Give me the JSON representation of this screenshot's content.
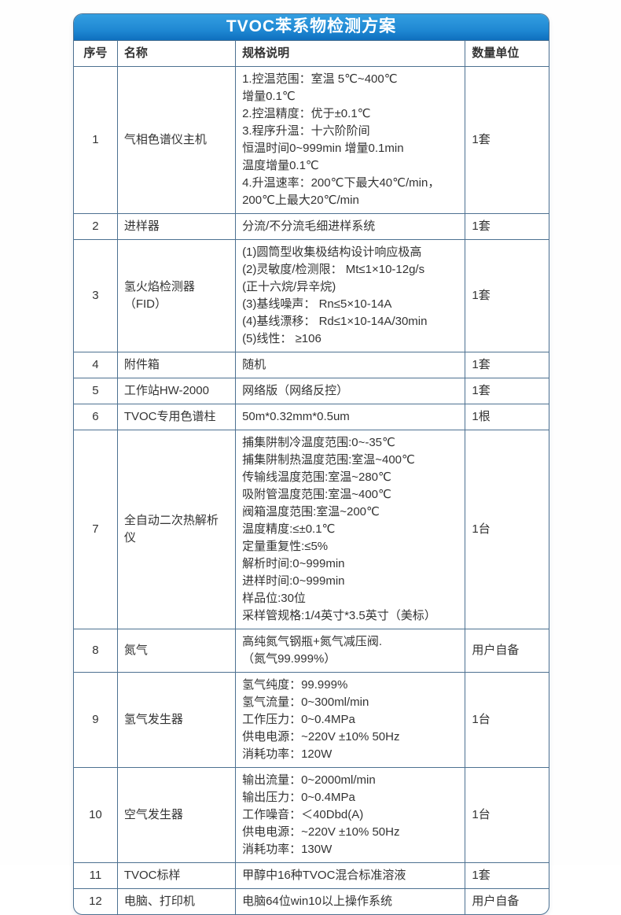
{
  "header": {
    "title": "TVOC苯系物检测方案"
  },
  "colors": {
    "banner_blue_top": "#35a0e2",
    "banner_blue_bottom": "#0e6fbe",
    "table_border": "#4d7191",
    "text": "#333333"
  },
  "table": {
    "columns": [
      "序号",
      "名称",
      "规格说明",
      "数量单位"
    ],
    "rows": [
      {
        "no": "1",
        "name": "气相色谱仪主机",
        "spec": [
          "1.控温范围：室温 5℃~400℃",
          "增量0.1℃",
          "2.控温精度：优于±0.1℃",
          "3.程序升温：十六阶阶间",
          "恒温时间0~999min 增量0.1min",
          "温度增量0.1℃",
          "4.升温速率：200℃下最大40℃/min，",
          "200℃上最大20℃/min"
        ],
        "qty": "1套"
      },
      {
        "no": "2",
        "name": "进样器",
        "spec": [
          "分流/不分流毛细进样系统"
        ],
        "qty": "1套"
      },
      {
        "no": "3",
        "name": "氢火焰检测器（FID）",
        "spec": [
          "(1)圆筒型收集极结构设计响应极高",
          "(2)灵敏度/检测限： Mt≤1×10-12g/s",
          "(正十六烷/异辛烷)",
          "(3)基线噪声： Rn≤5×10-14A",
          "(4)基线漂移： Rd≤1×10-14A/30min",
          "(5)线性： ≥106"
        ],
        "qty": "1套"
      },
      {
        "no": "4",
        "name": "附件箱",
        "spec": [
          "随机"
        ],
        "qty": "1套"
      },
      {
        "no": "5",
        "name": "工作站HW-2000",
        "spec": [
          "网络版（网络反控）"
        ],
        "qty": "1套"
      },
      {
        "no": "6",
        "name": "TVOC专用色谱柱",
        "spec": [
          "50m*0.32mm*0.5um"
        ],
        "qty": "1根"
      },
      {
        "no": "7",
        "name": "全自动二次热解析仪",
        "spec": [
          "捕集阱制冷温度范围:0~-35℃",
          "捕集阱制热温度范围:室温~400℃",
          "传输线温度范围:室温~280℃",
          "吸附管温度范围:室温~400℃",
          "阀箱温度范围:室温~200℃",
          "温度精度:≤±0.1℃",
          "定量重复性:≤5%",
          "解析时间:0~999min",
          "进样时间:0~999min",
          "样品位:30位",
          "采样管规格:1/4英寸*3.5英寸（美标）"
        ],
        "qty": "1台"
      },
      {
        "no": "8",
        "name": "氮气",
        "spec": [
          "高纯氮气钢瓶+氮气减压阀.",
          "（氮气99.999%）"
        ],
        "qty": "用户自备"
      },
      {
        "no": "9",
        "name": "氢气发生器",
        "spec": [
          "氢气纯度：99.999%",
          "氢气流量：0~300ml/min",
          "工作压力：0~0.4MPa",
          "供电电源：~220V ±10% 50Hz",
          "消耗功率：120W"
        ],
        "qty": "1台"
      },
      {
        "no": "10",
        "name": "空气发生器",
        "spec": [
          "输出流量：0~2000ml/min",
          "输出压力：0~0.4MPa",
          "工作噪音：＜40Dbd(A)",
          "供电电源：~220V ±10% 50Hz",
          "消耗功率：130W"
        ],
        "qty": "1台"
      },
      {
        "no": "11",
        "name": "TVOC标样",
        "spec": [
          "甲醇中16种TVOC混合标准溶液"
        ],
        "qty": "1套"
      },
      {
        "no": "12",
        "name": "电脑、打印机",
        "spec": [
          "电脑64位win10以上操作系统"
        ],
        "qty": "用户自备"
      }
    ]
  }
}
